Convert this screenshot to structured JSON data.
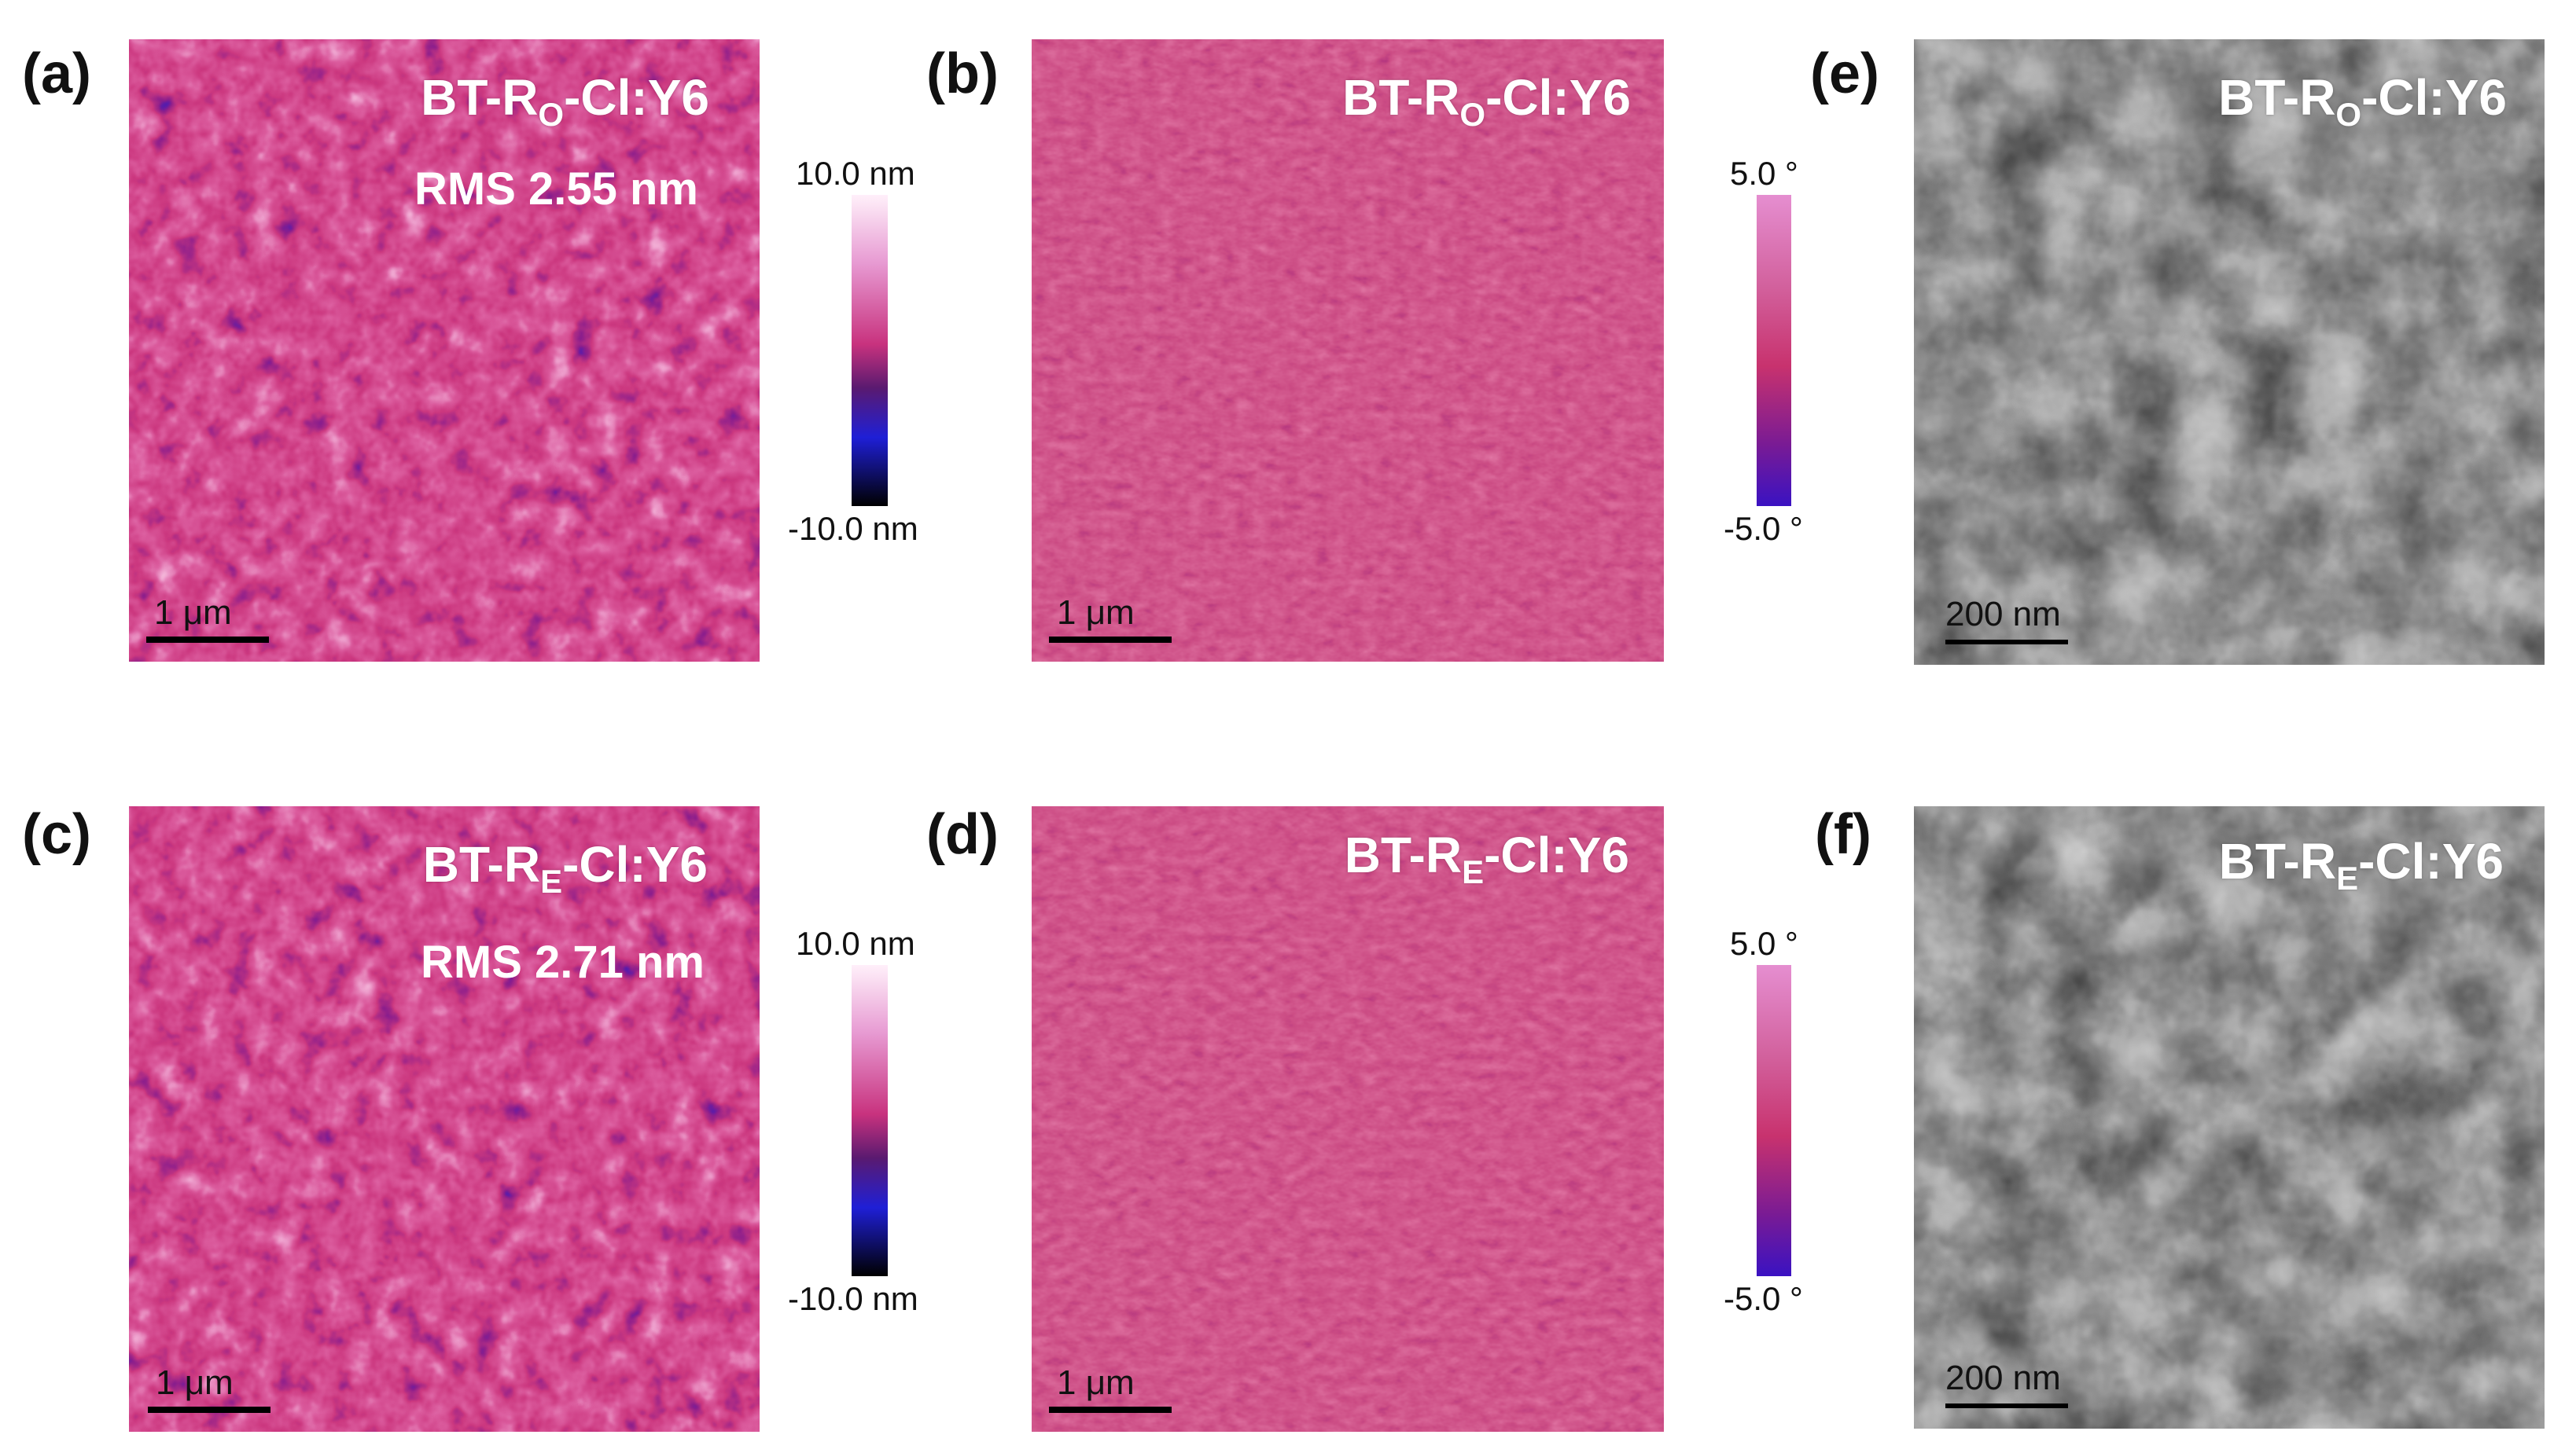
{
  "panels": [
    {
      "label": "(a)",
      "title_main": "BT-R",
      "title_sub": "O",
      "title_tail": "-Cl:Y6",
      "rms": "RMS 2.55 nm",
      "scale": "1 μm"
    },
    {
      "label": "(b)",
      "title_main": "BT-R",
      "title_sub": "O",
      "title_tail": "-Cl:Y6",
      "scale": "1 μm"
    },
    {
      "label": "(e)",
      "title_main": "BT-R",
      "title_sub": "O",
      "title_tail": "-Cl:Y6",
      "scale": "200 nm"
    },
    {
      "label": "(c)",
      "title_main": "BT-R",
      "title_sub": "E",
      "title_tail": "-Cl:Y6",
      "rms": "RMS 2.71 nm",
      "scale": "1 μm"
    },
    {
      "label": "(d)",
      "title_main": "BT-R",
      "title_sub": "E",
      "title_tail": "-Cl:Y6",
      "scale": "1 μm"
    },
    {
      "label": "(f)",
      "title_main": "BT-R",
      "title_sub": "E",
      "title_tail": "-Cl:Y6",
      "scale": "200 nm"
    }
  ],
  "colorbars": {
    "height": {
      "max": "10.0 nm",
      "min": "-10.0 nm",
      "colors": [
        "#fff0fa",
        "#e79ad2",
        "#c8327e",
        "#5a1a70",
        "#1f1fd6",
        "#000000"
      ]
    },
    "phase": {
      "max": "5.0 °",
      "min": "-5.0 °",
      "colors": [
        "#e58ed0",
        "#d2609c",
        "#c8326e",
        "#7a1b94",
        "#3a12c2"
      ]
    }
  }
}
